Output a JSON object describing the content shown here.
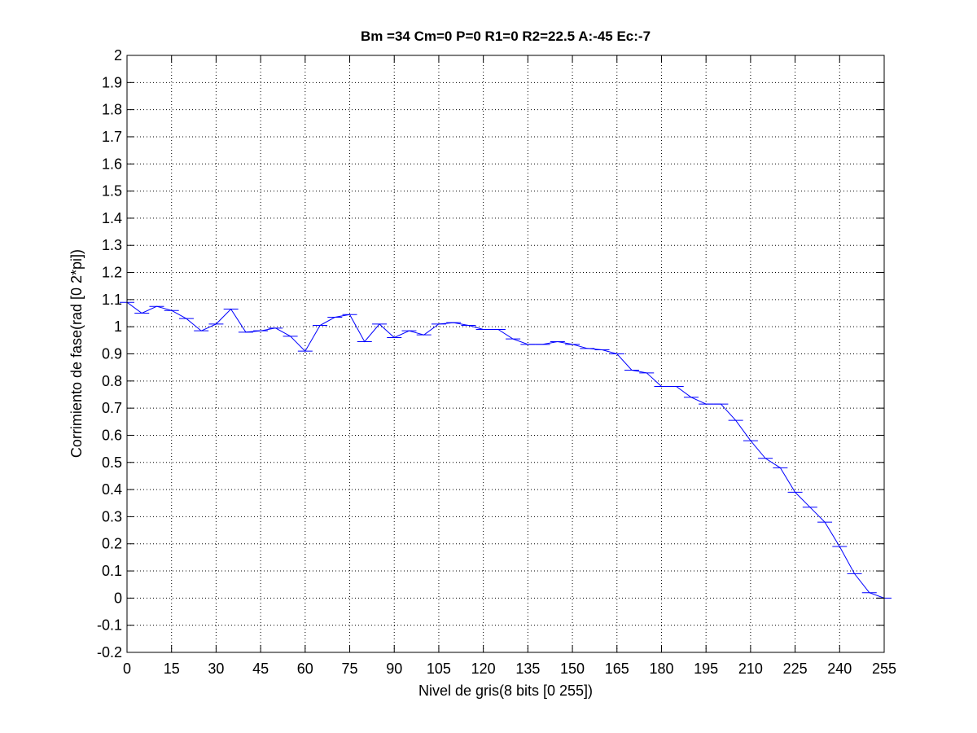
{
  "chart_data": {
    "type": "line",
    "title": "Bm =34  Cm=0  P=0  R1=0  R2=22.5  A:-45  Ec:-7",
    "xlabel": "Nivel de gris(8 bits [0 255])",
    "ylabel": "Corrimiento de fase(rad [0 2*pi])",
    "xlim": [
      0,
      255
    ],
    "ylim": [
      -0.2,
      2
    ],
    "xticks": [
      0,
      15,
      30,
      45,
      60,
      75,
      90,
      105,
      120,
      135,
      150,
      165,
      180,
      195,
      210,
      225,
      240,
      255
    ],
    "yticks": [
      -0.2,
      -0.1,
      0,
      0.1,
      0.2,
      0.3,
      0.4,
      0.5,
      0.6,
      0.7,
      0.8,
      0.9,
      1,
      1.1,
      1.2,
      1.3,
      1.4,
      1.5,
      1.6,
      1.7,
      1.8,
      1.9,
      2
    ],
    "ytick_labels": [
      "-0.2",
      "-0.1",
      "0",
      "0.1",
      "0.2",
      "0.3",
      "0.4",
      "0.5",
      "0.6",
      "0.7",
      "0.8",
      "0.9",
      "1",
      "1.1",
      "1.2",
      "1.3",
      "1.4",
      "1.5",
      "1.6",
      "1.7",
      "1.8",
      "1.9",
      "2"
    ],
    "grid": true,
    "series": [
      {
        "color": "#0000ff",
        "x": [
          0,
          5,
          10,
          15,
          20,
          25,
          30,
          35,
          40,
          45,
          50,
          55,
          60,
          65,
          70,
          75,
          80,
          85,
          90,
          95,
          100,
          105,
          110,
          115,
          120,
          125,
          130,
          135,
          140,
          145,
          150,
          155,
          160,
          165,
          170,
          175,
          180,
          185,
          190,
          195,
          200,
          205,
          210,
          215,
          220,
          225,
          230,
          235,
          240,
          245,
          250,
          255
        ],
        "y": [
          1.09,
          1.05,
          1.075,
          1.06,
          1.03,
          0.985,
          1.01,
          1.065,
          0.98,
          0.985,
          0.995,
          0.965,
          0.91,
          1.005,
          1.035,
          1.045,
          0.945,
          1.01,
          0.96,
          0.985,
          0.97,
          1.01,
          1.015,
          1.005,
          0.99,
          0.99,
          0.955,
          0.935,
          0.935,
          0.945,
          0.935,
          0.92,
          0.915,
          0.9,
          0.84,
          0.83,
          0.78,
          0.78,
          0.74,
          0.715,
          0.715,
          0.655,
          0.58,
          0.515,
          0.48,
          0.39,
          0.335,
          0.28,
          0.19,
          0.09,
          0.02,
          0.0
        ],
        "error_bar": true
      }
    ]
  }
}
